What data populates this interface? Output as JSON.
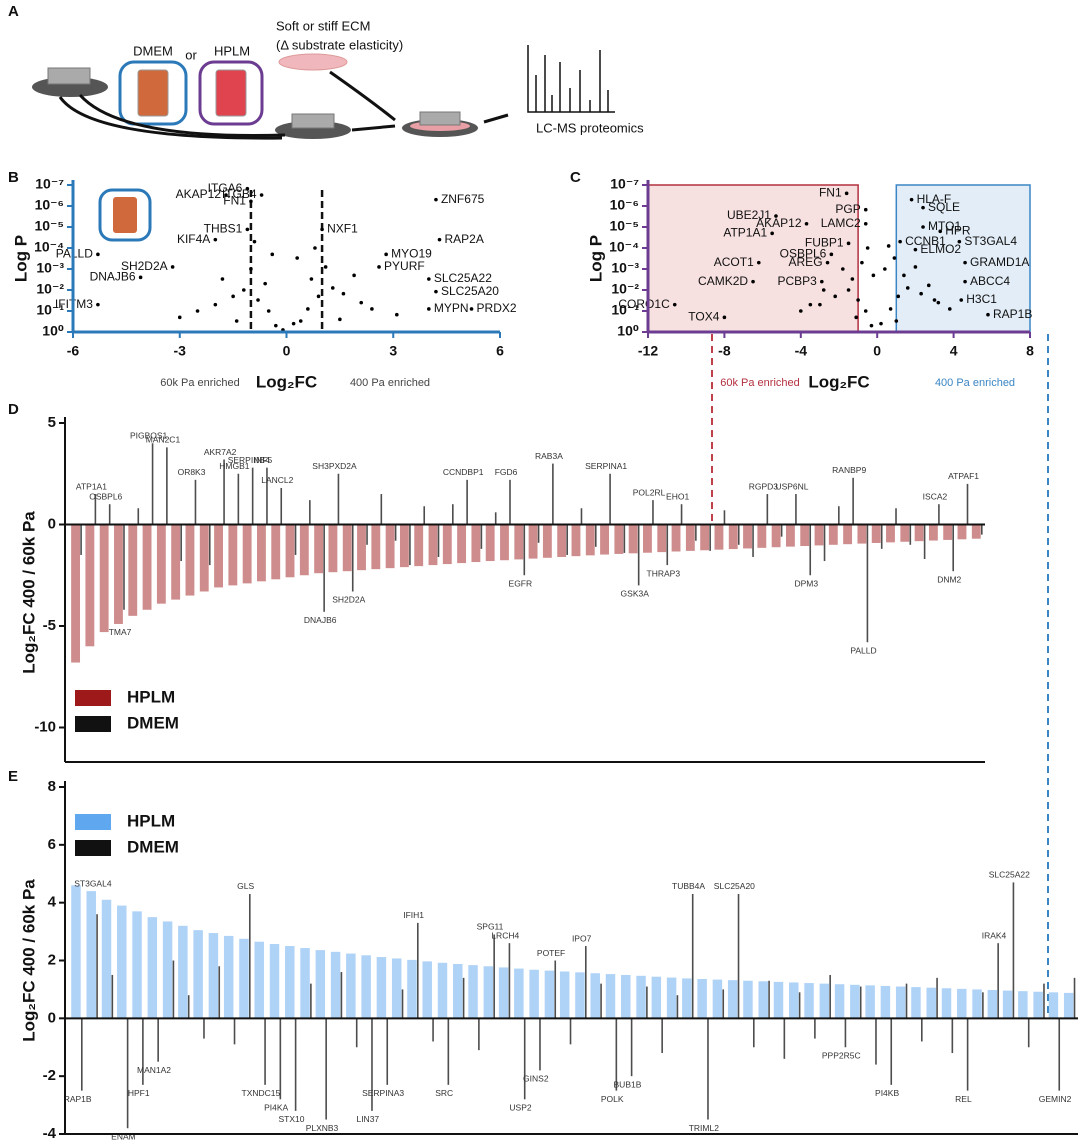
{
  "panel_a": {
    "label": "A",
    "media_1": "DMEM",
    "conjunction": "or",
    "media_2": "HPLM",
    "ecm_title": "Soft or stiff ECM",
    "ecm_subtitle": "(Δ substrate elasticity)",
    "readout": "LC-MS proteomics"
  },
  "chart_data": [
    {
      "panel_label": "B",
      "type": "scatter",
      "xlabel": "Log₂FC",
      "ylabel": "Log P",
      "axis_color": "#2b79b8",
      "log_y": true,
      "xlim": [
        -6,
        6
      ],
      "xticks": [
        -6,
        -3,
        0,
        3,
        6
      ],
      "ylim": [
        1,
        1e-07
      ],
      "yticks": [
        {
          "value": 1e-07,
          "label": "10⁻⁷"
        },
        {
          "value": 1e-06,
          "label": "10⁻⁶"
        },
        {
          "value": 1e-05,
          "label": "10⁻⁵"
        },
        {
          "value": 0.0001,
          "label": "10⁻⁴"
        },
        {
          "value": 0.001,
          "label": "10⁻³"
        },
        {
          "value": 0.01,
          "label": "10⁻²"
        },
        {
          "value": 0.1,
          "label": "10⁻¹"
        },
        {
          "value": 1,
          "label": "10⁰"
        }
      ],
      "threshold_lines": [
        -1,
        1
      ],
      "annotations": [
        "60k Pa enriched",
        "400 Pa enriched"
      ],
      "annotation_colors": [
        "#444444",
        "#444444"
      ],
      "point_color": "#000000",
      "x": [
        4.2,
        -1.7,
        -1.1,
        -1.0,
        -0.7,
        -1.1,
        -2.0,
        1.0,
        4.3,
        2.8,
        -5.3,
        -3.2,
        2.6,
        4.0,
        -4.1,
        4.2,
        -5.3,
        4.0,
        5.2,
        -0.3,
        0.2,
        -0.5,
        0.6,
        -0.8,
        0.9,
        -1.2,
        1.3,
        -1.5,
        1.6,
        -2.0,
        2.1,
        -0.1,
        0.4,
        -0.6,
        0.7,
        -1.0,
        1.1,
        -2.5,
        2.4,
        -3.0,
        3.1,
        -0.4,
        0.3,
        -1.8,
        1.9,
        -0.9,
        0.8,
        -1.4,
        1.5
      ],
      "values": [
        5e-07,
        3e-07,
        1.5e-07,
        6e-07,
        3e-07,
        1.3e-05,
        4e-05,
        1.3e-05,
        4e-05,
        0.0002,
        0.0002,
        0.0008,
        0.0008,
        0.003,
        0.0025,
        0.012,
        0.05,
        0.08,
        0.08,
        0.5,
        0.4,
        0.1,
        0.08,
        0.03,
        0.02,
        0.01,
        0.008,
        0.02,
        0.015,
        0.05,
        0.04,
        0.8,
        0.3,
        0.005,
        0.003,
        0.001,
        0.0008,
        0.1,
        0.08,
        0.2,
        0.15,
        0.0002,
        0.0003,
        0.003,
        0.002,
        5e-05,
        0.0001,
        0.3,
        0.25
      ],
      "point_labels": [
        "ZNF675",
        "AKAP12",
        "ITGA6",
        "FN1",
        "ITGB4",
        "THBS1",
        "KIF4A",
        "NXF1",
        "RAP2A",
        "MYO19",
        "PALLD",
        "SH2D2A",
        "PYURF",
        "SLC25A22",
        "DNAJB6",
        "SLC25A20",
        "IFITM3",
        "MYPN",
        "PRDX2",
        null,
        null,
        null,
        null,
        null,
        null,
        null,
        null,
        null,
        null,
        null,
        null,
        null,
        null,
        null,
        null,
        null,
        null,
        null,
        null,
        null,
        null,
        null,
        null,
        null,
        null,
        null,
        null,
        null,
        null
      ]
    },
    {
      "panel_label": "C",
      "type": "scatter",
      "xlabel": "Log₂FC",
      "ylabel": "Log P",
      "axis_color": "#6b3c91",
      "log_y": true,
      "xlim": [
        -12,
        8
      ],
      "xticks": [
        -12,
        -8,
        -4,
        0,
        4,
        8
      ],
      "ylim": [
        1,
        1e-07
      ],
      "yticks": [
        {
          "value": 1e-07,
          "label": "10⁻⁷"
        },
        {
          "value": 1e-06,
          "label": "10⁻⁶"
        },
        {
          "value": 1e-05,
          "label": "10⁻⁵"
        },
        {
          "value": 0.0001,
          "label": "10⁻⁴"
        },
        {
          "value": 0.001,
          "label": "10⁻³"
        },
        {
          "value": 0.01,
          "label": "10⁻²"
        },
        {
          "value": 0.1,
          "label": "10⁻¹"
        },
        {
          "value": 1,
          "label": "10⁰"
        }
      ],
      "regions": [
        {
          "from": -12,
          "to": -1,
          "fill": "#f7e0e0",
          "stroke": "#b3303f"
        },
        {
          "from": 1,
          "to": 8,
          "fill": "#e2edf7",
          "stroke": "#3a86c4"
        }
      ],
      "annotations": [
        "60k Pa enriched",
        "400 Pa enriched"
      ],
      "annotation_colors": [
        "#b3303f",
        "#3a86c4"
      ],
      "point_color": "#000000",
      "x": [
        -1.6,
        -0.6,
        1.8,
        2.4,
        -5.3,
        -3.7,
        -0.6,
        2.4,
        3.3,
        -5.5,
        -1.5,
        1.2,
        4.3,
        2.0,
        -2.4,
        4.6,
        -6.2,
        -2.6,
        -6.5,
        -2.9,
        4.6,
        -10.6,
        4.4,
        -8.0,
        5.8,
        -0.3,
        0.2,
        -0.6,
        0.7,
        -1.0,
        1.1,
        -1.5,
        1.6,
        -2.2,
        2.3,
        -3.0,
        3.2,
        -0.2,
        0.4,
        -0.8,
        0.9,
        -1.3,
        1.4,
        -4.0,
        3.8,
        -0.5,
        0.6,
        -1.8,
        2.0,
        -2.8,
        2.7,
        -1.1,
        1.0,
        -3.5,
        3.0
      ],
      "values": [
        2.5e-07,
        1.5e-06,
        5e-07,
        1.2e-06,
        3e-06,
        7e-06,
        7e-06,
        1e-05,
        1.6e-05,
        2e-05,
        6e-05,
        5e-05,
        5e-05,
        0.00012,
        0.0002,
        0.0005,
        0.0005,
        0.0005,
        0.004,
        0.004,
        0.004,
        0.05,
        0.03,
        0.2,
        0.15,
        0.5,
        0.4,
        0.1,
        0.08,
        0.03,
        0.02,
        0.01,
        0.008,
        0.02,
        0.015,
        0.05,
        0.04,
        0.002,
        0.001,
        0.0005,
        0.0003,
        0.003,
        0.002,
        0.1,
        0.08,
        0.0001,
        8e-05,
        0.001,
        0.0008,
        0.01,
        0.006,
        0.2,
        0.3,
        0.05,
        0.03
      ],
      "point_labels": [
        "FN1",
        "PGP",
        "HLA-F",
        "SQLE",
        "UBE2J1",
        "AKAP12",
        "LAMC2",
        "MTO1",
        "HPR",
        "ATP1A1",
        "FUBP1",
        "CCNB1",
        "ST3GAL4",
        "ELMO2",
        "OSBPL6",
        "GRAMD1A",
        "ACOT1",
        "AREG",
        "CAMK2D",
        "PCBP3",
        "ABCC4",
        "CORO1C",
        "H3C1",
        "TOX4",
        "RAP1B",
        null,
        null,
        null,
        null,
        null,
        null,
        null,
        null,
        null,
        null,
        null,
        null,
        null,
        null,
        null,
        null,
        null,
        null,
        null,
        null,
        null,
        null,
        null,
        null,
        null,
        null,
        null,
        null,
        null,
        null
      ]
    },
    {
      "panel_label": "D",
      "type": "bar",
      "ylabel": "Log₂FC 400 / 60k Pa",
      "ylim": [
        -11.7,
        5
      ],
      "yticks": [
        -10,
        -5,
        0,
        5
      ],
      "legend": "lower left",
      "categories": [
        null,
        "ATP1A1",
        "OSBPL6",
        "TMA7",
        null,
        "PIGBOS1",
        "MAN2C1",
        null,
        "OR8K3",
        null,
        "AKR7A2",
        "HMGB1",
        "SERPINB4",
        "INF5",
        "LANCL2",
        null,
        null,
        "DNAJB6",
        "SH3PXD2A",
        "SH2D2A",
        null,
        null,
        null,
        null,
        null,
        null,
        null,
        "CCNDBP1",
        null,
        null,
        "FGD6",
        "EGFR",
        null,
        "RAB3A",
        null,
        null,
        null,
        "SERPINA1",
        null,
        "GSK3A",
        "POL2RL",
        "THRAP3",
        "EHO1",
        null,
        null,
        null,
        null,
        null,
        "RGPD3",
        null,
        "USP6NL",
        "DPM3",
        null,
        null,
        "RANBP9",
        "PALLD",
        null,
        null,
        null,
        null,
        "ISCA2",
        "DNM2",
        "ATPAF1",
        null
      ],
      "series": [
        {
          "name": "HPLM",
          "color": "#9e1a1a",
          "values": [
            -6.8,
            -6.0,
            -5.3,
            -4.9,
            -4.5,
            -4.2,
            -3.9,
            -3.7,
            -3.5,
            -3.3,
            -3.1,
            -3.0,
            -2.9,
            -2.8,
            -2.7,
            -2.6,
            -2.5,
            -2.4,
            -2.35,
            -2.3,
            -2.25,
            -2.2,
            -2.15,
            -2.1,
            -2.05,
            -2.0,
            -1.95,
            -1.9,
            -1.85,
            -1.8,
            -1.76,
            -1.72,
            -1.68,
            -1.64,
            -1.6,
            -1.56,
            -1.52,
            -1.48,
            -1.45,
            -1.42,
            -1.39,
            -1.36,
            -1.33,
            -1.3,
            -1.27,
            -1.24,
            -1.21,
            -1.18,
            -1.15,
            -1.12,
            -1.09,
            -1.06,
            -1.03,
            -1.0,
            -0.97,
            -0.94,
            -0.91,
            -0.88,
            -0.85,
            -0.82,
            -0.79,
            -0.76,
            -0.73,
            -0.7
          ]
        },
        {
          "name": "DMEM",
          "color": "#111111",
          "values": [
            -1.5,
            1.5,
            1.0,
            -4.2,
            0.8,
            4.0,
            3.8,
            -1.8,
            2.2,
            -2.0,
            3.2,
            2.5,
            2.8,
            2.8,
            1.8,
            -1.5,
            1.2,
            -4.3,
            2.5,
            -3.3,
            -1.0,
            1.5,
            -0.8,
            -2.0,
            0.9,
            -1.6,
            1.0,
            2.2,
            -1.2,
            0.6,
            2.2,
            -2.5,
            -0.9,
            3.0,
            -1.5,
            0.8,
            -1.1,
            2.5,
            -1.4,
            -3.0,
            1.2,
            -2.0,
            1.0,
            -0.8,
            -1.3,
            0.7,
            -1.0,
            -1.6,
            1.5,
            -0.6,
            1.5,
            -2.5,
            -1.8,
            0.9,
            2.3,
            -5.8,
            -1.2,
            0.8,
            -1.0,
            -1.7,
            1.0,
            -2.3,
            2.0,
            -0.5
          ]
        }
      ]
    },
    {
      "panel_label": "E",
      "type": "bar",
      "ylabel": "Log₂FC 400 / 60k Pa",
      "ylim": [
        -4,
        8
      ],
      "yticks": [
        -4,
        -2,
        0,
        2,
        4,
        6,
        8
      ],
      "legend": "upper left",
      "categories": [
        "RAP1B",
        "ST3GAL4",
        null,
        "ENAM",
        "HPF1",
        "MAN1A2",
        null,
        null,
        null,
        null,
        null,
        "GLS",
        "TXNDC15",
        "PI4KA",
        "STX10",
        null,
        "PLXNB3",
        null,
        null,
        "LIN37",
        "SERPINA3",
        null,
        "IFIH1",
        null,
        "SRC",
        null,
        null,
        "SPG11",
        "LRCH4",
        "USP2",
        "GINS2",
        "POTEF",
        null,
        "IPO7",
        null,
        "POLK",
        "BUB1B",
        null,
        null,
        null,
        "TUBB4A",
        "TRIML2",
        null,
        "SLC25A20",
        null,
        null,
        null,
        null,
        null,
        null,
        "PPP2R5C",
        null,
        null,
        "PI4KB",
        null,
        null,
        null,
        null,
        "REL",
        null,
        "IRAK4",
        "SLC25A22",
        null,
        null,
        "GEMIN2",
        null
      ],
      "series": [
        {
          "name": "HPLM",
          "color": "#5fa8f0",
          "values": [
            4.6,
            4.4,
            4.1,
            3.9,
            3.7,
            3.5,
            3.35,
            3.2,
            3.05,
            2.95,
            2.85,
            2.75,
            2.65,
            2.57,
            2.5,
            2.43,
            2.36,
            2.3,
            2.24,
            2.18,
            2.12,
            2.07,
            2.02,
            1.97,
            1.92,
            1.88,
            1.84,
            1.8,
            1.76,
            1.72,
            1.68,
            1.65,
            1.62,
            1.59,
            1.56,
            1.53,
            1.5,
            1.47,
            1.44,
            1.41,
            1.38,
            1.36,
            1.34,
            1.32,
            1.3,
            1.28,
            1.26,
            1.24,
            1.22,
            1.2,
            1.18,
            1.16,
            1.14,
            1.12,
            1.1,
            1.08,
            1.06,
            1.04,
            1.02,
            1.0,
            0.98,
            0.96,
            0.94,
            0.92,
            0.9,
            0.88
          ]
        },
        {
          "name": "DMEM",
          "color": "#111111",
          "values": [
            -2.5,
            3.6,
            1.5,
            -3.8,
            -2.3,
            -1.5,
            2.0,
            0.8,
            -0.7,
            1.8,
            -0.9,
            4.3,
            -2.3,
            -2.8,
            -3.2,
            1.2,
            -3.5,
            1.6,
            -1.0,
            -3.2,
            -2.3,
            1.0,
            3.3,
            -0.8,
            -2.3,
            1.4,
            -1.1,
            2.9,
            2.6,
            -2.8,
            -1.8,
            2.0,
            -0.9,
            2.5,
            1.2,
            -2.5,
            -2.0,
            1.1,
            -1.2,
            0.8,
            4.3,
            -3.5,
            1.0,
            4.3,
            -1.0,
            1.3,
            -1.4,
            0.9,
            -0.7,
            1.5,
            -1.0,
            1.1,
            -1.6,
            -2.3,
            1.2,
            -0.8,
            1.4,
            -1.2,
            -2.5,
            0.9,
            2.6,
            4.7,
            -1.0,
            1.2,
            -2.5,
            1.4
          ]
        }
      ]
    }
  ]
}
